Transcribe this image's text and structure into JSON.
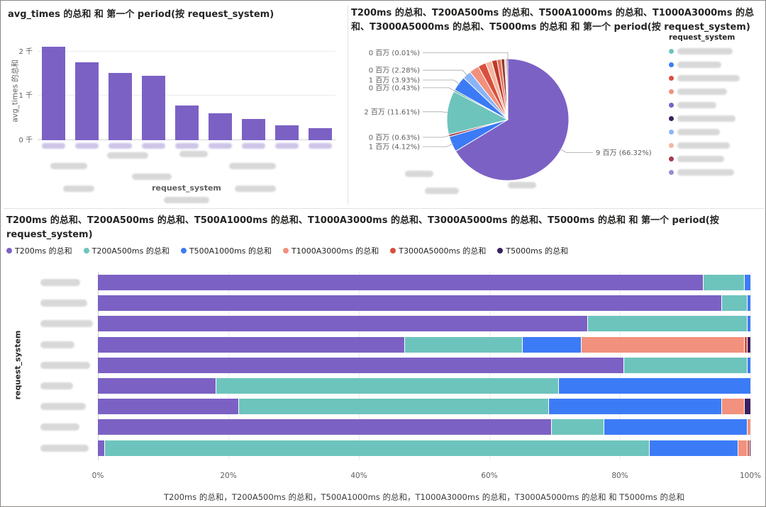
{
  "redaction_note": "All request_system category names (bar x-axis labels, stacked-bar y-axis labels, pie legend entries) are blurred/redacted in the source screenshot.",
  "colors": {
    "purple": "#7B61C4",
    "teal": "#6DC4BD",
    "blue": "#3C7BF6",
    "salmon": "#F2917D",
    "red": "#D94F3D",
    "dark_purple": "#3A2160",
    "axis_text": "#605E5C",
    "title_text": "#252423"
  },
  "chart_data": [
    {
      "type": "bar",
      "title": "avg_times 的总和 和 第一个 period(按 request_system)",
      "ylabel": "avg_times 的总和",
      "xlabel": "request_system",
      "unit": "千",
      "ylim": [
        0,
        2.25
      ],
      "yticks": [
        {
          "value": 0,
          "label": "0 千"
        },
        {
          "value": 1,
          "label": "1 千"
        },
        {
          "value": 2,
          "label": "2 千"
        }
      ],
      "values": [
        2.1,
        1.76,
        1.52,
        1.45,
        0.79,
        0.6,
        0.48,
        0.33,
        0.27
      ],
      "bar_color": "#7B61C4",
      "categories_redacted": true,
      "grid": true
    },
    {
      "type": "pie",
      "title": "T200ms 的总和、T200A500ms 的总和、T500A1000ms 的总和、T1000A3000ms 的总和、T3000A5000ms 的总和、T5000ms 的总和 和 第一个 period(按 request_system)",
      "legend_title": "request_system",
      "legend_position": "right",
      "legend_items_redacted": true,
      "slices": [
        {
          "value": 66.32,
          "label": "9 百万 (66.32%)",
          "color": "#7B61C4"
        },
        {
          "value": 4.12,
          "label": "1 百万 (4.12%)",
          "color": "#3C7BF6"
        },
        {
          "value": 0.63,
          "label": "0 百万 (0.63%)",
          "color": "#A63A50"
        },
        {
          "value": 11.61,
          "label": "2 百万 (11.61%)",
          "color": "#6DC4BD"
        },
        {
          "value": 0.43,
          "label": "0 百万 (0.43%)",
          "color": "#3E9C83"
        },
        {
          "value": 3.93,
          "label": "1 百万 (3.93%)",
          "color": "#3C7BF6"
        },
        {
          "value": 2.28,
          "label": "0 百万 (2.28%)",
          "color": "#8AB4F8"
        },
        {
          "value": 2.6,
          "label": null,
          "color": "#F2917D"
        },
        {
          "value": 2.1,
          "label": null,
          "color": "#D94F3D"
        },
        {
          "value": 1.7,
          "label": null,
          "color": "#F5B7A0"
        },
        {
          "value": 1.4,
          "label": null,
          "color": "#C0392B"
        },
        {
          "value": 1.1,
          "label": null,
          "color": "#E8705A"
        },
        {
          "value": 0.9,
          "label": null,
          "color": "#8C3B2E"
        },
        {
          "value": 0.5,
          "label": null,
          "color": "#F2C3B5"
        },
        {
          "value": 0.35,
          "label": null,
          "color": "#5A2D82"
        },
        {
          "value": 0.01,
          "label": "0 百万 (0.01%)",
          "color": "#3A2160"
        }
      ],
      "legend_dot_colors": [
        "#6DC4BD",
        "#3C7BF6",
        "#D94F3D",
        "#F2917D",
        "#7B61C4",
        "#3A2160",
        "#8AB4F8",
        "#F5B7A0",
        "#A63A50",
        "#9B8BD0"
      ]
    },
    {
      "type": "stacked-bar-100",
      "title": "T200ms 的总和、T200A500ms 的总和、T500A1000ms 的总和、T1000A3000ms 的总和、T3000A5000ms 的总和、T5000ms 的总和 和 第一个 period(按 request_system)",
      "ylabel": "request_system",
      "xlabel": "T200ms 的总和，T200A500ms 的总和，T500A1000ms 的总和，T1000A3000ms 的总和，T3000A5000ms 的总和 和 T5000ms 的总和",
      "xticks": [
        "0%",
        "20%",
        "40%",
        "60%",
        "80%",
        "100%"
      ],
      "series": [
        {
          "name": "T200ms 的总和",
          "color": "#7B61C4"
        },
        {
          "name": "T200A500ms 的总和",
          "color": "#6DC4BD"
        },
        {
          "name": "T500A1000ms 的总和",
          "color": "#3C7BF6"
        },
        {
          "name": "T1000A3000ms 的总和",
          "color": "#F2917D"
        },
        {
          "name": "T3000A5000ms 的总和",
          "color": "#D94F3D"
        },
        {
          "name": "T5000ms 的总和",
          "color": "#3A2160"
        }
      ],
      "rows": [
        [
          92.7,
          6.3,
          1.0,
          0,
          0,
          0
        ],
        [
          95.5,
          4.0,
          0.5,
          0,
          0,
          0
        ],
        [
          75.0,
          24.5,
          0.5,
          0,
          0,
          0
        ],
        [
          47.0,
          18.0,
          9.0,
          25.0,
          0.5,
          0.5
        ],
        [
          80.5,
          19.0,
          0.5,
          0,
          0,
          0
        ],
        [
          18.0,
          52.5,
          29.5,
          0,
          0,
          0
        ],
        [
          21.5,
          47.5,
          26.5,
          3.5,
          0,
          1.0
        ],
        [
          69.5,
          8.0,
          22.0,
          0.5,
          0,
          0
        ],
        [
          1.0,
          83.5,
          13.5,
          1.5,
          0.3,
          0.2
        ]
      ],
      "categories_redacted": true,
      "grid": true
    }
  ]
}
